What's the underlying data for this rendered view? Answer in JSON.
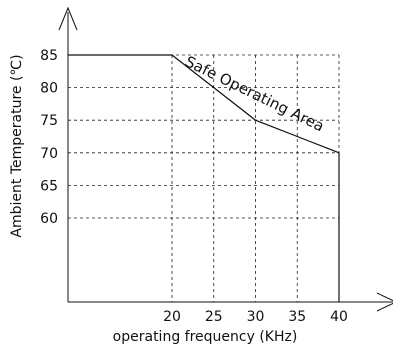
{
  "chart_data": {
    "type": "line",
    "title": "",
    "xlabel": "operating frequency (KHz)",
    "ylabel": "Ambient Temperature (℃)",
    "x_ticks": [
      20,
      25,
      30,
      35,
      40
    ],
    "y_ticks": [
      60,
      65,
      70,
      75,
      80,
      85
    ],
    "xlim": [
      0,
      40
    ],
    "ylim": [
      40,
      85
    ],
    "grid": true,
    "series": [
      {
        "x": [
          0,
          20,
          25,
          30,
          35,
          40,
          40
        ],
        "y": [
          85,
          85,
          80,
          75,
          72.5,
          70,
          40
        ]
      }
    ],
    "annotations": [
      {
        "text": "Safe Operating Area"
      }
    ]
  }
}
